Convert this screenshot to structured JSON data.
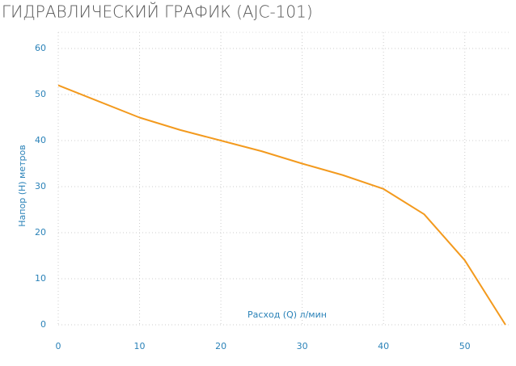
{
  "chart_data": {
    "type": "line",
    "title": "ГИДРАВЛИЧЕСКИЙ ГРАФИК (AJC-101)",
    "x_label": "Расход (Q) л/мин",
    "y_label": "Напор (H) метров",
    "x": [
      0,
      5,
      10,
      15,
      20,
      25,
      30,
      35,
      40,
      45,
      50,
      55
    ],
    "series": [
      {
        "name": "AJC-101",
        "color": "#f39a1e",
        "values": [
          52,
          48.5,
          45,
          42.3,
          40,
          37.7,
          35,
          32.5,
          29.5,
          24,
          14,
          0
        ]
      }
    ],
    "xlim": [
      0,
      55.5
    ],
    "xticks": [
      0,
      10,
      20,
      30,
      40,
      50
    ],
    "ylim": [
      0,
      60
    ],
    "yticks": [
      0,
      10,
      20,
      30,
      40,
      50,
      60
    ],
    "grid": true
  }
}
